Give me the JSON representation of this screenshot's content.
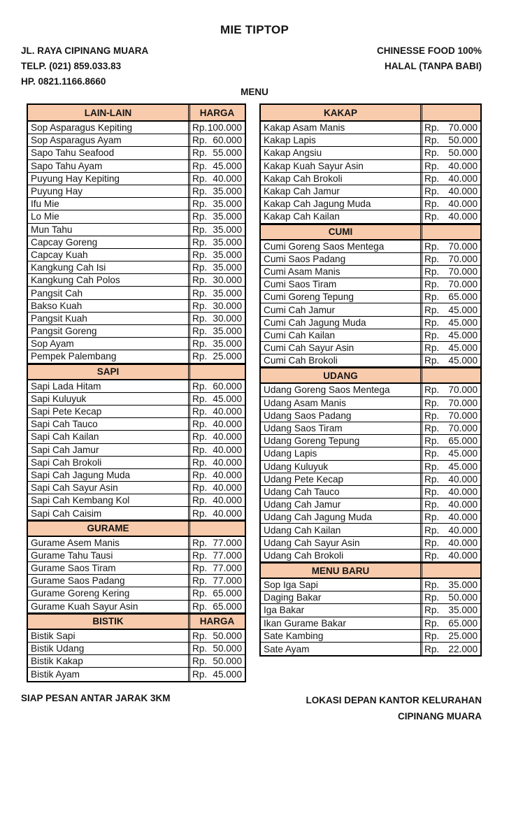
{
  "header": {
    "title": "MIE TIPTOP",
    "address": "JL. RAYA CIPINANG MUARA",
    "phone": "TELP. (021) 859.033.83",
    "mobile": "HP. 0821.1166.8660",
    "tagline_line1": "CHINESSE FOOD 100%",
    "tagline_line2": "HALAL (TANPA BABI)",
    "menu_label": "MENU"
  },
  "footer": {
    "left": "SIAP PESAN ANTAR JARAK 3KM",
    "right_line1": "LOKASI DEPAN KANTOR KELURAHAN",
    "right_line2": "CIPINANG MUARA"
  },
  "menu": {
    "currency_prefix": "Rp.",
    "colors": {
      "header_fill": "#F8CBAD",
      "border": "#000000",
      "text": "#151515"
    },
    "columns": {
      "left": [
        {
          "section": "LAIN-LAIN",
          "price_header": "HARGA",
          "items": [
            {
              "name": "Sop Asparagus Kepiting",
              "price": "100.000"
            },
            {
              "name": "Sop Asparagus Ayam",
              "price": "60.000"
            },
            {
              "name": "Sapo Tahu Seafood",
              "price": "55.000"
            },
            {
              "name": "Sapo Tahu Ayam",
              "price": "45.000"
            },
            {
              "name": "Puyung Hay Kepiting",
              "price": "40.000"
            },
            {
              "name": "Puyung Hay",
              "price": "35.000"
            },
            {
              "name": "Ifu Mie",
              "price": "35.000"
            },
            {
              "name": "Lo Mie",
              "price": "35.000"
            },
            {
              "name": "Mun Tahu",
              "price": "35.000"
            },
            {
              "name": "Capcay Goreng",
              "price": "35.000"
            },
            {
              "name": "Capcay Kuah",
              "price": "35.000"
            },
            {
              "name": "Kangkung Cah Isi",
              "price": "35.000"
            },
            {
              "name": "Kangkung Cah Polos",
              "price": "30.000"
            },
            {
              "name": "Pangsit Cah",
              "price": "35.000"
            },
            {
              "name": "Bakso Kuah",
              "price": "30.000"
            },
            {
              "name": "Pangsit Kuah",
              "price": "30.000"
            },
            {
              "name": "Pangsit Goreng",
              "price": "35.000"
            },
            {
              "name": "Sop Ayam",
              "price": "35.000"
            },
            {
              "name": "Pempek Palembang",
              "price": "25.000"
            }
          ]
        },
        {
          "section": "SAPI",
          "price_header": "",
          "items": [
            {
              "name": "Sapi Lada Hitam",
              "price": "60.000"
            },
            {
              "name": "Sapi Kuluyuk",
              "price": "45.000"
            },
            {
              "name": "Sapi Pete Kecap",
              "price": "40.000"
            },
            {
              "name": "Sapi Cah Tauco",
              "price": "40.000"
            },
            {
              "name": "Sapi Cah Kailan",
              "price": "40.000"
            },
            {
              "name": "Sapi Cah Jamur",
              "price": "40.000"
            },
            {
              "name": "Sapi Cah Brokoli",
              "price": "40.000"
            },
            {
              "name": "Sapi Cah Jagung Muda",
              "price": "40.000"
            },
            {
              "name": "Sapi Cah Sayur Asin",
              "price": "40.000"
            },
            {
              "name": "Sapi Cah Kembang Kol",
              "price": "40.000"
            },
            {
              "name": "Sapi Cah Caisim",
              "price": "40.000"
            }
          ]
        },
        {
          "section": "GURAME",
          "price_header": "",
          "items": [
            {
              "name": "Gurame Asem Manis",
              "price": "77.000"
            },
            {
              "name": "Gurame Tahu Tausi",
              "price": "77.000"
            },
            {
              "name": "Gurame  Saos Tiram",
              "price": "77.000"
            },
            {
              "name": "Gurame Saos Padang",
              "price": "77.000"
            },
            {
              "name": "Gurame Goreng Kering",
              "price": "65.000"
            },
            {
              "name": "Gurame Kuah Sayur Asin",
              "price": "65.000"
            }
          ]
        },
        {
          "section": "BISTIK",
          "price_header": "HARGA",
          "items": [
            {
              "name": "Bistik Sapi",
              "price": "50.000"
            },
            {
              "name": "Bistik Udang",
              "price": "50.000"
            },
            {
              "name": "Bistik Kakap",
              "price": "50.000"
            },
            {
              "name": "Bistik Ayam",
              "price": "45.000"
            }
          ]
        }
      ],
      "right": [
        {
          "section": "KAKAP",
          "price_header": "",
          "items": [
            {
              "name": "Kakap Asam Manis",
              "price": "70.000"
            },
            {
              "name": "Kakap Lapis",
              "price": "50.000"
            },
            {
              "name": "Kakap Angsiu",
              "price": "50.000"
            },
            {
              "name": "Kakap Kuah Sayur Asin",
              "price": "40.000"
            },
            {
              "name": "Kakap Cah Brokoli",
              "price": "40.000"
            },
            {
              "name": "Kakap Cah Jamur",
              "price": "40.000"
            },
            {
              "name": "Kakap Cah Jagung Muda",
              "price": "40.000"
            },
            {
              "name": "Kakap Cah Kailan",
              "price": "40.000"
            }
          ]
        },
        {
          "section": "CUMI",
          "price_header": "",
          "items": [
            {
              "name": "Cumi Goreng Saos Mentega",
              "price": "70.000"
            },
            {
              "name": "Cumi Saos Padang",
              "price": "70.000"
            },
            {
              "name": "Cumi Asam Manis",
              "price": "70.000"
            },
            {
              "name": "Cumi Saos Tiram",
              "price": "70.000"
            },
            {
              "name": "Cumi Goreng Tepung",
              "price": "65.000"
            },
            {
              "name": "Cumi Cah Jamur",
              "price": "45.000"
            },
            {
              "name": "Cumi Cah Jagung Muda",
              "price": "45.000"
            },
            {
              "name": "Cumi Cah Kailan",
              "price": "45.000"
            },
            {
              "name": "Cumi Cah Sayur Asin",
              "price": "45.000"
            },
            {
              "name": "Cumi Cah Brokoli",
              "price": "45.000"
            }
          ]
        },
        {
          "section": "UDANG",
          "price_header": "",
          "items": [
            {
              "name": "Udang Goreng Saos Mentega",
              "price": "70.000"
            },
            {
              "name": "Udang Asam Manis",
              "price": "70.000"
            },
            {
              "name": "Udang Saos Padang",
              "price": "70.000"
            },
            {
              "name": "Udang Saos Tiram",
              "price": "70.000"
            },
            {
              "name": "Udang Goreng Tepung",
              "price": "65.000"
            },
            {
              "name": "Udang Lapis",
              "price": "45.000"
            },
            {
              "name": "Udang Kuluyuk",
              "price": "45.000"
            },
            {
              "name": "Udang Pete Kecap",
              "price": "40.000"
            },
            {
              "name": "Udang Cah Tauco",
              "price": "40.000"
            },
            {
              "name": "Udang Cah Jamur",
              "price": "40.000"
            },
            {
              "name": "Udang Cah Jagung Muda",
              "price": "40.000"
            },
            {
              "name": "Udang Cah Kailan",
              "price": "40.000"
            },
            {
              "name": "Udang Cah Sayur Asin",
              "price": "40.000"
            },
            {
              "name": "Udang Cah Brokoli",
              "price": "40.000"
            }
          ]
        },
        {
          "section": "MENU BARU",
          "price_header": "",
          "items": [
            {
              "name": "Sop Iga Sapi",
              "price": "35.000"
            },
            {
              "name": "Daging Bakar",
              "price": "50.000"
            },
            {
              "name": "Iga Bakar",
              "price": "35.000"
            },
            {
              "name": "Ikan Gurame Bakar",
              "price": "65.000"
            },
            {
              "name": "Sate Kambing",
              "price": "25.000"
            },
            {
              "name": "Sate Ayam",
              "price": "22.000"
            }
          ]
        }
      ]
    }
  }
}
